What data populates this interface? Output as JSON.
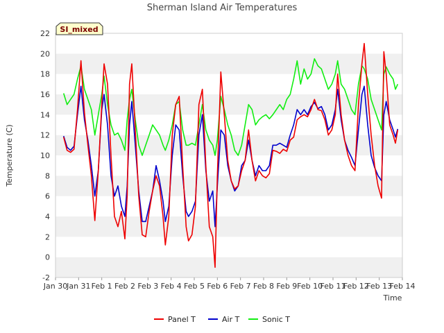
{
  "chart_data": {
    "type": "line",
    "title": "Sherman Island Air Temperatures",
    "xlabel": "Time",
    "ylabel": "Temperature (C)",
    "ylim": [
      -2,
      22
    ],
    "yticks": [
      -2,
      0,
      2,
      4,
      6,
      8,
      10,
      12,
      14,
      16,
      18,
      20,
      22
    ],
    "xlim": [
      0,
      15
    ],
    "xtick_labels": [
      "Jan 30",
      "Jan 31",
      "Feb 1",
      "Feb 2",
      "Feb 3",
      "Feb 4",
      "Feb 5",
      "Feb 6",
      "Feb 7",
      "Feb 8",
      "Feb 9",
      "Feb 10",
      "Feb 11",
      "Feb 12",
      "Feb 13",
      "Feb 14"
    ],
    "grid": "horizontal bands",
    "legend_position": "bottom-center",
    "annotation": "SI_mixed",
    "x_unit_note": "x values are day index from Jan 30",
    "series": [
      {
        "name": "Panel T",
        "color": "#ee0000",
        "points": [
          [
            0.35,
            11.8
          ],
          [
            0.5,
            10.5
          ],
          [
            0.65,
            10.3
          ],
          [
            0.8,
            10.6
          ],
          [
            0.95,
            14.5
          ],
          [
            1.1,
            19.3
          ],
          [
            1.25,
            14.2
          ],
          [
            1.4,
            11.0
          ],
          [
            1.55,
            8.0
          ],
          [
            1.7,
            3.6
          ],
          [
            1.85,
            8.5
          ],
          [
            2.0,
            15.0
          ],
          [
            2.1,
            19.0
          ],
          [
            2.25,
            17.0
          ],
          [
            2.4,
            10.0
          ],
          [
            2.55,
            4.0
          ],
          [
            2.7,
            3.0
          ],
          [
            2.85,
            4.5
          ],
          [
            3.0,
            1.8
          ],
          [
            3.1,
            6.0
          ],
          [
            3.2,
            17.0
          ],
          [
            3.3,
            19.0
          ],
          [
            3.45,
            12.5
          ],
          [
            3.6,
            6.0
          ],
          [
            3.75,
            2.2
          ],
          [
            3.9,
            2.0
          ],
          [
            4.05,
            4.5
          ],
          [
            4.2,
            6.5
          ],
          [
            4.35,
            8.0
          ],
          [
            4.5,
            7.0
          ],
          [
            4.65,
            4.0
          ],
          [
            4.75,
            1.2
          ],
          [
            4.9,
            4.0
          ],
          [
            5.05,
            12.0
          ],
          [
            5.2,
            15.0
          ],
          [
            5.35,
            15.8
          ],
          [
            5.5,
            9.0
          ],
          [
            5.65,
            3.0
          ],
          [
            5.75,
            1.6
          ],
          [
            5.9,
            2.2
          ],
          [
            6.05,
            5.0
          ],
          [
            6.2,
            15.0
          ],
          [
            6.35,
            16.5
          ],
          [
            6.5,
            9.0
          ],
          [
            6.65,
            3.0
          ],
          [
            6.8,
            2.0
          ],
          [
            6.9,
            -1.0
          ],
          [
            7.0,
            8.0
          ],
          [
            7.15,
            18.2
          ],
          [
            7.3,
            14.0
          ],
          [
            7.45,
            9.5
          ],
          [
            7.6,
            7.5
          ],
          [
            7.75,
            6.7
          ],
          [
            7.9,
            7.0
          ],
          [
            8.05,
            8.5
          ],
          [
            8.2,
            9.5
          ],
          [
            8.35,
            12.5
          ],
          [
            8.5,
            9.5
          ],
          [
            8.65,
            7.5
          ],
          [
            8.8,
            8.5
          ],
          [
            8.95,
            8.0
          ],
          [
            9.1,
            7.8
          ],
          [
            9.25,
            8.2
          ],
          [
            9.4,
            10.5
          ],
          [
            9.55,
            10.4
          ],
          [
            9.7,
            10.2
          ],
          [
            9.85,
            10.6
          ],
          [
            10.0,
            10.4
          ],
          [
            10.15,
            11.5
          ],
          [
            10.3,
            11.8
          ],
          [
            10.45,
            13.5
          ],
          [
            10.6,
            13.8
          ],
          [
            10.75,
            14.0
          ],
          [
            10.9,
            13.8
          ],
          [
            11.05,
            14.5
          ],
          [
            11.2,
            15.5
          ],
          [
            11.35,
            14.5
          ],
          [
            11.5,
            14.4
          ],
          [
            11.65,
            13.5
          ],
          [
            11.8,
            12.0
          ],
          [
            11.95,
            12.5
          ],
          [
            12.1,
            14.0
          ],
          [
            12.2,
            18.0
          ],
          [
            12.35,
            14.0
          ],
          [
            12.5,
            11.5
          ],
          [
            12.65,
            10.0
          ],
          [
            12.8,
            9.0
          ],
          [
            12.95,
            8.5
          ],
          [
            13.1,
            15.0
          ],
          [
            13.25,
            19.0
          ],
          [
            13.35,
            21.0
          ],
          [
            13.5,
            16.0
          ],
          [
            13.65,
            12.0
          ],
          [
            13.8,
            9.0
          ],
          [
            13.95,
            7.0
          ],
          [
            14.1,
            5.8
          ],
          [
            14.2,
            20.2
          ],
          [
            14.3,
            18.0
          ],
          [
            14.45,
            13.0
          ],
          [
            14.6,
            12.0
          ],
          [
            14.7,
            11.2
          ],
          [
            14.8,
            12.5
          ]
        ]
      },
      {
        "name": "Air T",
        "color": "#0000cc",
        "points": [
          [
            0.35,
            11.9
          ],
          [
            0.5,
            10.8
          ],
          [
            0.65,
            10.5
          ],
          [
            0.8,
            10.9
          ],
          [
            0.95,
            14.0
          ],
          [
            1.1,
            16.8
          ],
          [
            1.25,
            13.5
          ],
          [
            1.4,
            11.5
          ],
          [
            1.55,
            9.0
          ],
          [
            1.7,
            6.0
          ],
          [
            1.85,
            8.5
          ],
          [
            2.0,
            14.5
          ],
          [
            2.1,
            16.0
          ],
          [
            2.25,
            13.0
          ],
          [
            2.4,
            8.0
          ],
          [
            2.55,
            6.0
          ],
          [
            2.7,
            7.0
          ],
          [
            2.85,
            5.0
          ],
          [
            3.0,
            4.0
          ],
          [
            3.1,
            7.0
          ],
          [
            3.2,
            13.0
          ],
          [
            3.3,
            15.3
          ],
          [
            3.45,
            11.0
          ],
          [
            3.6,
            6.5
          ],
          [
            3.75,
            3.5
          ],
          [
            3.9,
            3.5
          ],
          [
            4.05,
            5.0
          ],
          [
            4.2,
            6.5
          ],
          [
            4.35,
            9.0
          ],
          [
            4.5,
            7.5
          ],
          [
            4.65,
            5.5
          ],
          [
            4.75,
            3.5
          ],
          [
            4.9,
            5.0
          ],
          [
            5.05,
            10.0
          ],
          [
            5.2,
            13.0
          ],
          [
            5.35,
            12.5
          ],
          [
            5.5,
            8.0
          ],
          [
            5.65,
            4.5
          ],
          [
            5.75,
            4.0
          ],
          [
            5.9,
            4.5
          ],
          [
            6.05,
            5.5
          ],
          [
            6.2,
            12.0
          ],
          [
            6.35,
            14.0
          ],
          [
            6.5,
            8.5
          ],
          [
            6.65,
            5.5
          ],
          [
            6.8,
            6.5
          ],
          [
            6.9,
            3.0
          ],
          [
            7.0,
            7.0
          ],
          [
            7.15,
            12.5
          ],
          [
            7.3,
            12.0
          ],
          [
            7.45,
            9.0
          ],
          [
            7.6,
            7.5
          ],
          [
            7.75,
            6.5
          ],
          [
            7.9,
            7.0
          ],
          [
            8.05,
            9.0
          ],
          [
            8.2,
            9.5
          ],
          [
            8.35,
            11.5
          ],
          [
            8.5,
            9.5
          ],
          [
            8.65,
            8.0
          ],
          [
            8.8,
            9.0
          ],
          [
            8.95,
            8.5
          ],
          [
            9.1,
            8.5
          ],
          [
            9.25,
            9.0
          ],
          [
            9.4,
            11.0
          ],
          [
            9.55,
            11.0
          ],
          [
            9.7,
            11.2
          ],
          [
            9.85,
            11.0
          ],
          [
            10.0,
            10.8
          ],
          [
            10.15,
            12.0
          ],
          [
            10.3,
            13.0
          ],
          [
            10.45,
            14.5
          ],
          [
            10.6,
            14.0
          ],
          [
            10.75,
            14.5
          ],
          [
            10.9,
            14.0
          ],
          [
            11.05,
            14.8
          ],
          [
            11.2,
            15.2
          ],
          [
            11.35,
            14.6
          ],
          [
            11.5,
            14.8
          ],
          [
            11.65,
            14.0
          ],
          [
            11.8,
            12.5
          ],
          [
            11.95,
            13.0
          ],
          [
            12.1,
            14.5
          ],
          [
            12.2,
            16.5
          ],
          [
            12.35,
            13.5
          ],
          [
            12.5,
            11.5
          ],
          [
            12.65,
            10.5
          ],
          [
            12.8,
            9.8
          ],
          [
            12.95,
            9.0
          ],
          [
            13.1,
            12.5
          ],
          [
            13.25,
            16.0
          ],
          [
            13.35,
            16.8
          ],
          [
            13.5,
            13.0
          ],
          [
            13.65,
            10.0
          ],
          [
            13.8,
            8.8
          ],
          [
            13.95,
            8.0
          ],
          [
            14.1,
            7.5
          ],
          [
            14.2,
            14.0
          ],
          [
            14.3,
            15.3
          ],
          [
            14.45,
            13.5
          ],
          [
            14.6,
            12.5
          ],
          [
            14.7,
            11.8
          ],
          [
            14.8,
            12.6
          ]
        ]
      },
      {
        "name": "Sonic T",
        "color": "#11ee11",
        "points": [
          [
            0.35,
            16.1
          ],
          [
            0.5,
            15.0
          ],
          [
            0.65,
            15.5
          ],
          [
            0.8,
            16.0
          ],
          [
            0.95,
            17.5
          ],
          [
            1.1,
            18.8
          ],
          [
            1.25,
            16.5
          ],
          [
            1.4,
            15.5
          ],
          [
            1.55,
            14.5
          ],
          [
            1.7,
            12.0
          ],
          [
            1.85,
            14.0
          ],
          [
            2.0,
            16.0
          ],
          [
            2.1,
            17.8
          ],
          [
            2.25,
            15.0
          ],
          [
            2.4,
            13.0
          ],
          [
            2.55,
            12.0
          ],
          [
            2.7,
            12.2
          ],
          [
            2.85,
            11.5
          ],
          [
            3.0,
            10.5
          ],
          [
            3.1,
            13.5
          ],
          [
            3.2,
            15.5
          ],
          [
            3.3,
            16.5
          ],
          [
            3.45,
            13.5
          ],
          [
            3.6,
            11.0
          ],
          [
            3.75,
            10.0
          ],
          [
            3.9,
            11.0
          ],
          [
            4.05,
            12.0
          ],
          [
            4.2,
            13.0
          ],
          [
            4.35,
            12.5
          ],
          [
            4.5,
            12.0
          ],
          [
            4.65,
            11.0
          ],
          [
            4.75,
            10.5
          ],
          [
            4.9,
            11.5
          ],
          [
            5.05,
            13.0
          ],
          [
            5.2,
            15.0
          ],
          [
            5.35,
            15.3
          ],
          [
            5.5,
            12.5
          ],
          [
            5.65,
            11.0
          ],
          [
            5.75,
            11.0
          ],
          [
            5.9,
            11.2
          ],
          [
            6.05,
            11.0
          ],
          [
            6.2,
            13.0
          ],
          [
            6.35,
            15.0
          ],
          [
            6.5,
            12.5
          ],
          [
            6.65,
            11.5
          ],
          [
            6.8,
            11.0
          ],
          [
            6.9,
            10.0
          ],
          [
            7.0,
            11.5
          ],
          [
            7.15,
            15.8
          ],
          [
            7.3,
            14.5
          ],
          [
            7.45,
            13.0
          ],
          [
            7.6,
            12.0
          ],
          [
            7.75,
            10.5
          ],
          [
            7.9,
            10.0
          ],
          [
            8.05,
            11.0
          ],
          [
            8.2,
            13.0
          ],
          [
            8.35,
            15.0
          ],
          [
            8.5,
            14.5
          ],
          [
            8.65,
            13.0
          ],
          [
            8.8,
            13.5
          ],
          [
            8.95,
            13.8
          ],
          [
            9.1,
            14.0
          ],
          [
            9.25,
            13.6
          ],
          [
            9.4,
            14.0
          ],
          [
            9.55,
            14.5
          ],
          [
            9.7,
            15.0
          ],
          [
            9.85,
            14.5
          ],
          [
            10.0,
            15.5
          ],
          [
            10.15,
            16.0
          ],
          [
            10.3,
            17.5
          ],
          [
            10.45,
            19.3
          ],
          [
            10.6,
            17.0
          ],
          [
            10.75,
            18.5
          ],
          [
            10.9,
            17.5
          ],
          [
            11.05,
            18.0
          ],
          [
            11.2,
            19.5
          ],
          [
            11.35,
            18.8
          ],
          [
            11.5,
            18.5
          ],
          [
            11.65,
            17.5
          ],
          [
            11.8,
            16.5
          ],
          [
            11.95,
            17.0
          ],
          [
            12.1,
            18.0
          ],
          [
            12.2,
            19.3
          ],
          [
            12.35,
            17.0
          ],
          [
            12.5,
            16.5
          ],
          [
            12.65,
            15.5
          ],
          [
            12.8,
            14.5
          ],
          [
            12.95,
            14.0
          ],
          [
            13.1,
            17.0
          ],
          [
            13.25,
            18.8
          ],
          [
            13.35,
            18.5
          ],
          [
            13.5,
            17.5
          ],
          [
            13.65,
            15.5
          ],
          [
            13.8,
            14.5
          ],
          [
            13.95,
            13.5
          ],
          [
            14.1,
            12.5
          ],
          [
            14.2,
            18.0
          ],
          [
            14.3,
            18.7
          ],
          [
            14.45,
            18.0
          ],
          [
            14.6,
            17.5
          ],
          [
            14.7,
            16.5
          ],
          [
            14.8,
            17.0
          ]
        ]
      }
    ]
  }
}
